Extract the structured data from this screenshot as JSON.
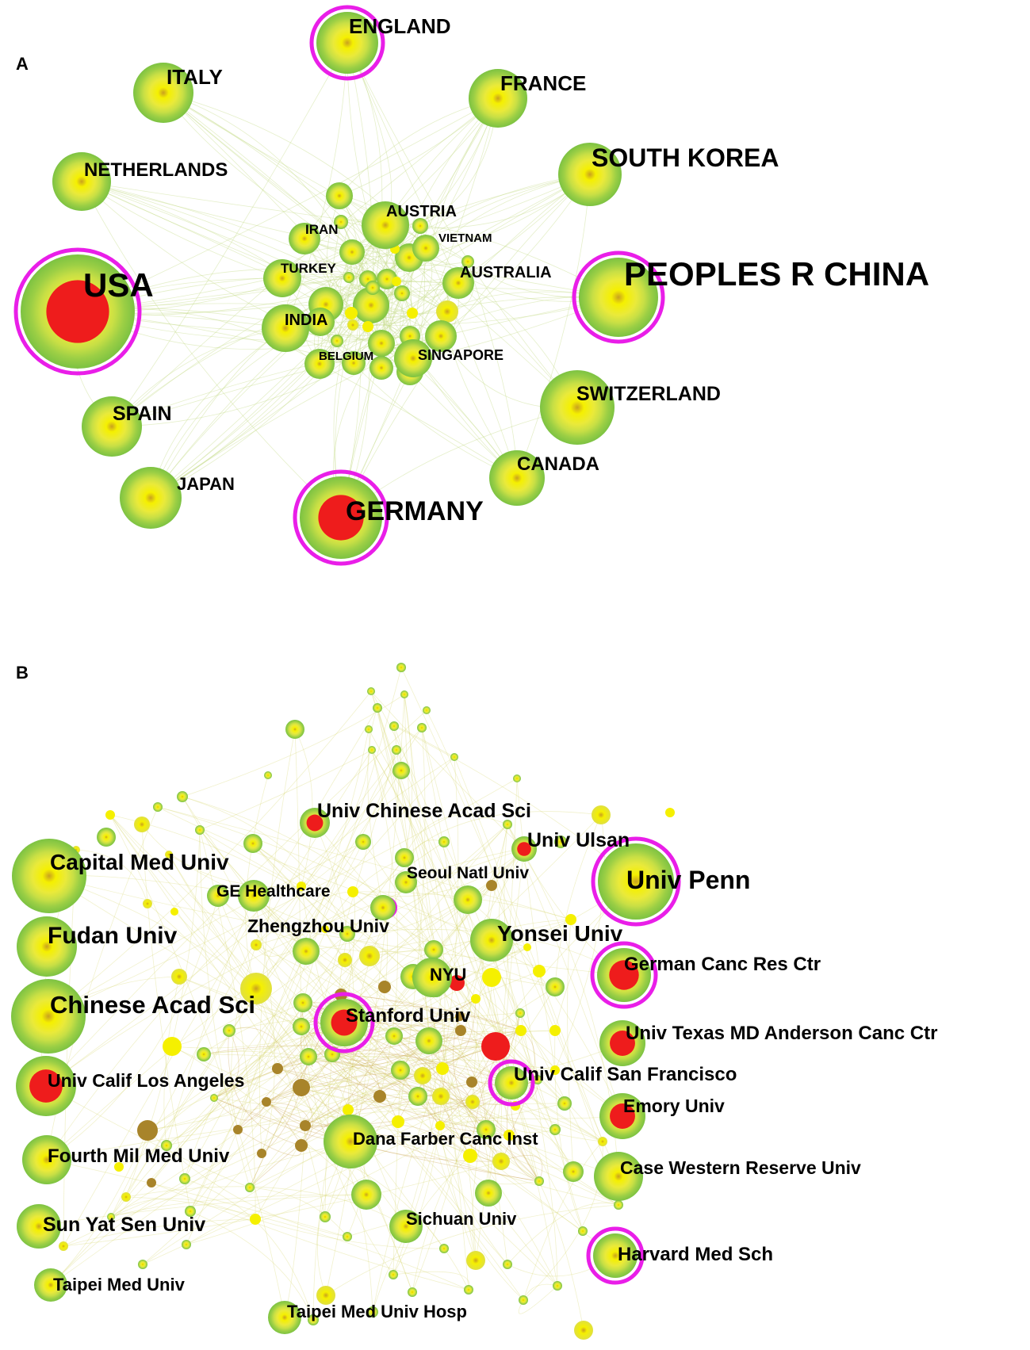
{
  "panels": {
    "a": {
      "letter": "A"
    },
    "b": {
      "letter": "B"
    }
  },
  "colors": {
    "outer_green": "#7cc242",
    "mid_yellow": "#e8e83a",
    "core_yellow": "#f5f000",
    "burst_red": "#ee1c1c",
    "centrality_ring": "#e91ee8",
    "brown": "#a8842a",
    "edge": "#c6dc8a"
  },
  "countries": [
    {
      "id": "usa",
      "label": "USA",
      "burst": true,
      "centrality": true
    },
    {
      "id": "china",
      "label": "PEOPLES R CHINA",
      "burst": false,
      "centrality": true
    },
    {
      "id": "england",
      "label": "ENGLAND",
      "burst": false,
      "centrality": true
    },
    {
      "id": "germany",
      "label": "GERMANY",
      "burst": true,
      "centrality": true
    },
    {
      "id": "italy",
      "label": "ITALY",
      "burst": false,
      "centrality": false
    },
    {
      "id": "france",
      "label": "FRANCE",
      "burst": false,
      "centrality": false
    },
    {
      "id": "south_korea",
      "label": "SOUTH KOREA",
      "burst": false,
      "centrality": false
    },
    {
      "id": "netherlands",
      "label": "NETHERLANDS",
      "burst": false,
      "centrality": false
    },
    {
      "id": "austria",
      "label": "AUSTRIA",
      "burst": false,
      "centrality": false
    },
    {
      "id": "iran",
      "label": "IRAN",
      "burst": false,
      "centrality": false
    },
    {
      "id": "vietnam",
      "label": "VIETNAM",
      "burst": false,
      "centrality": false
    },
    {
      "id": "turkey",
      "label": "TURKEY",
      "burst": false,
      "centrality": false
    },
    {
      "id": "australia",
      "label": "AUSTRALIA",
      "burst": false,
      "centrality": false
    },
    {
      "id": "india",
      "label": "INDIA",
      "burst": false,
      "centrality": false
    },
    {
      "id": "belgium",
      "label": "BELGIUM",
      "burst": false,
      "centrality": false
    },
    {
      "id": "singapore",
      "label": "SINGAPORE",
      "burst": false,
      "centrality": false
    },
    {
      "id": "spain",
      "label": "SPAIN",
      "burst": false,
      "centrality": false
    },
    {
      "id": "switzerland",
      "label": "SWITZERLAND",
      "burst": false,
      "centrality": false
    },
    {
      "id": "canada",
      "label": "CANADA",
      "burst": false,
      "centrality": false
    },
    {
      "id": "japan",
      "label": "JAPAN",
      "burst": false,
      "centrality": false
    }
  ],
  "institutions": [
    {
      "id": "ucas",
      "label": "Univ Chinese Acad Sci",
      "burst": true,
      "centrality": false
    },
    {
      "id": "ulsan",
      "label": "Univ Ulsan",
      "burst": true,
      "centrality": false
    },
    {
      "id": "capital",
      "label": "Capital Med Univ",
      "burst": false,
      "centrality": false
    },
    {
      "id": "seoul",
      "label": "Seoul Natl Univ",
      "burst": false,
      "centrality": false
    },
    {
      "id": "penn",
      "label": "Univ Penn",
      "burst": false,
      "centrality": true
    },
    {
      "id": "ge",
      "label": "GE Healthcare",
      "burst": false,
      "centrality": false
    },
    {
      "id": "zhengzhou",
      "label": "Zhengzhou Univ",
      "burst": false,
      "centrality": false
    },
    {
      "id": "fudan",
      "label": "Fudan Univ",
      "burst": false,
      "centrality": false
    },
    {
      "id": "yonsei",
      "label": "Yonsei Univ",
      "burst": false,
      "centrality": false
    },
    {
      "id": "nyu",
      "label": "NYU",
      "burst": false,
      "centrality": false
    },
    {
      "id": "german_canc",
      "label": "German Canc Res Ctr",
      "burst": true,
      "centrality": true
    },
    {
      "id": "cas",
      "label": "Chinese Acad Sci",
      "burst": false,
      "centrality": false
    },
    {
      "id": "stanford",
      "label": "Stanford Univ",
      "burst": true,
      "centrality": true
    },
    {
      "id": "md_anderson",
      "label": "Univ Texas MD Anderson Canc Ctr",
      "burst": true,
      "centrality": false
    },
    {
      "id": "ucla",
      "label": "Univ Calif Los Angeles",
      "burst": true,
      "centrality": false
    },
    {
      "id": "ucsf",
      "label": "Univ Calif San Francisco",
      "burst": false,
      "centrality": true
    },
    {
      "id": "emory",
      "label": "Emory Univ",
      "burst": true,
      "centrality": false
    },
    {
      "id": "dana",
      "label": "Dana Farber Canc Inst",
      "burst": false,
      "centrality": false
    },
    {
      "id": "fourth_mil",
      "label": "Fourth Mil Med Univ",
      "burst": false,
      "centrality": false
    },
    {
      "id": "case_western",
      "label": "Case Western Reserve Univ",
      "burst": false,
      "centrality": false
    },
    {
      "id": "sysu",
      "label": "Sun Yat Sen Univ",
      "burst": false,
      "centrality": false
    },
    {
      "id": "sichuan",
      "label": "Sichuan Univ",
      "burst": false,
      "centrality": false
    },
    {
      "id": "harvard",
      "label": "Harvard Med Sch",
      "burst": false,
      "centrality": true
    },
    {
      "id": "taipei",
      "label": "Taipei Med Univ",
      "burst": false,
      "centrality": false
    },
    {
      "id": "taipei_hosp",
      "label": "Taipei Med Univ Hosp",
      "burst": false,
      "centrality": false
    }
  ]
}
